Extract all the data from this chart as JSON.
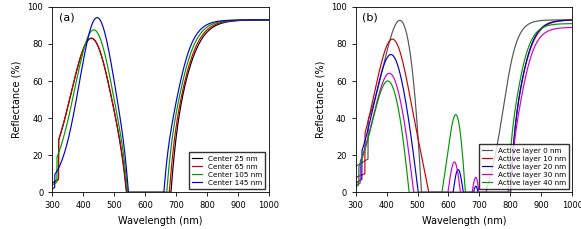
{
  "panel_a": {
    "label": "(a)",
    "xlabel": "Wavelength (nm)",
    "ylabel": "Reflectance (%)",
    "xlim": [
      300,
      1000
    ],
    "ylim": [
      0,
      100
    ],
    "xticks": [
      300,
      400,
      500,
      600,
      700,
      800,
      900,
      1000
    ],
    "yticks": [
      0,
      20,
      40,
      60,
      80,
      100
    ],
    "legend": [
      "Center 25 nm",
      "Center 65 nm",
      "Center 105 nm",
      "Center 145 nm"
    ],
    "colors": [
      "black",
      "#cc0000",
      "#009900",
      "#0000cc"
    ]
  },
  "panel_b": {
    "label": "(b)",
    "xlabel": "Wavelength (nm)",
    "ylabel": "Reflectance (%)",
    "xlim": [
      300,
      1000
    ],
    "ylim": [
      0,
      100
    ],
    "xticks": [
      300,
      400,
      500,
      600,
      700,
      800,
      900,
      1000
    ],
    "yticks": [
      0,
      20,
      40,
      60,
      80,
      100
    ],
    "legend": [
      "Active layer 0 nm",
      "Active layer 10 nm",
      "Active layer 20 nm",
      "Active layer 30 nm",
      "Active layer 40 nm"
    ],
    "colors": [
      "#555555",
      "#cc0000",
      "#0000cc",
      "#cc00cc",
      "#009900"
    ]
  }
}
